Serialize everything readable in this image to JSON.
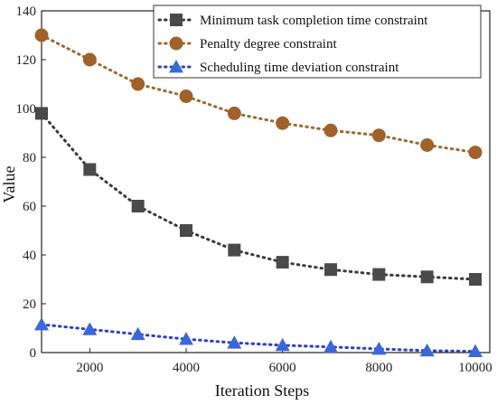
{
  "chart_data": {
    "type": "line",
    "xlabel": "Iteration Steps",
    "ylabel": "Value",
    "xlim": [
      1000,
      10300
    ],
    "ylim": [
      0,
      140
    ],
    "x_ticks": [
      2000,
      4000,
      6000,
      8000,
      10000
    ],
    "y_ticks": [
      0,
      20,
      40,
      60,
      80,
      100,
      120,
      140
    ],
    "x_tick_labels": [
      "2000",
      "4000",
      "6000",
      "8000",
      "10000"
    ],
    "y_tick_labels": [
      "0",
      "20",
      "40",
      "60",
      "80",
      "100",
      "120",
      "140"
    ],
    "grid": false,
    "legend_position": "top-right",
    "x": [
      1000,
      2000,
      3000,
      4000,
      5000,
      6000,
      7000,
      8000,
      9000,
      10000
    ],
    "series": [
      {
        "name": "Minimum task completion time constraint",
        "marker": "square",
        "marker_color": "#4a4a4a",
        "line_color": "#3a3a3a",
        "values": [
          98,
          75,
          60,
          50,
          42,
          37,
          34,
          32,
          31,
          30
        ]
      },
      {
        "name": "Penalty degree constraint",
        "marker": "circle",
        "marker_color": "#a0612a",
        "line_color": "#9a6a2e",
        "values": [
          130,
          120,
          110,
          105,
          98,
          94,
          91,
          89,
          85,
          82
        ]
      },
      {
        "name": "Scheduling time deviation constraint",
        "marker": "triangle",
        "marker_color": "#3b68d8",
        "line_color": "#2f3fcf",
        "values": [
          11.5,
          9.5,
          7.5,
          5.5,
          4,
          3,
          2.3,
          1.5,
          0.8,
          0.5
        ]
      }
    ]
  }
}
